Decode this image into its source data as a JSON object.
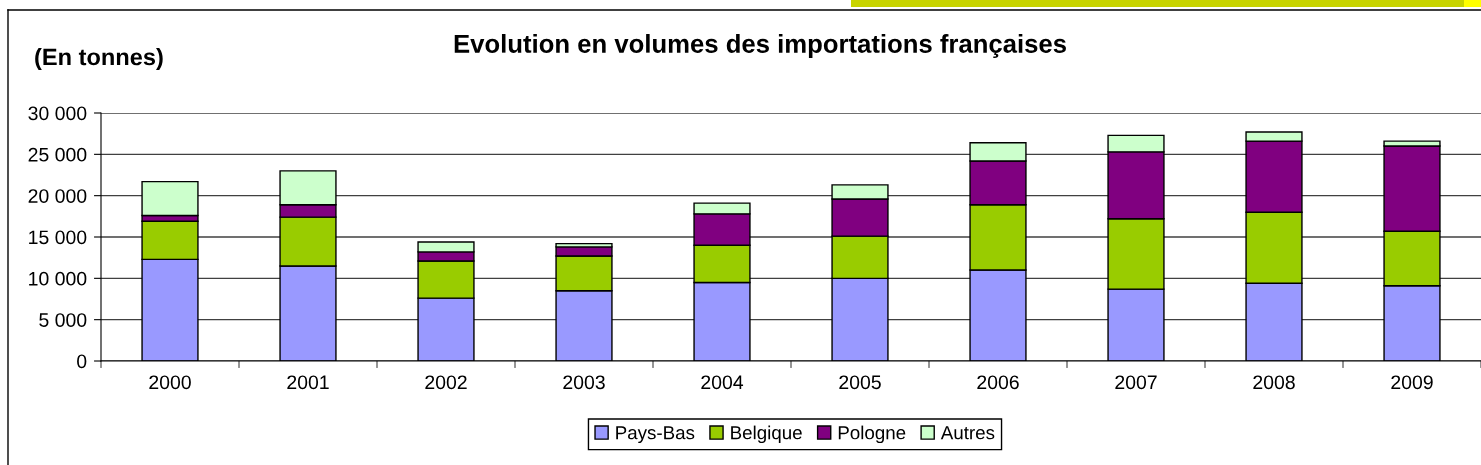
{
  "chart_data": {
    "type": "bar",
    "title": "Evolution en volumes des importations françaises",
    "ylabel": "(En tonnes)",
    "categories": [
      "2000",
      "2001",
      "2002",
      "2003",
      "2004",
      "2005",
      "2006",
      "2007",
      "2008",
      "2009"
    ],
    "stacked": true,
    "series": [
      {
        "name": "Pays-Bas",
        "color": "#9999ff",
        "values": [
          12300,
          11500,
          7600,
          8500,
          9500,
          10000,
          11000,
          8700,
          9400,
          9100
        ]
      },
      {
        "name": "Belgique",
        "color": "#99cc00",
        "values": [
          4600,
          5900,
          4500,
          4200,
          4500,
          5100,
          7900,
          8500,
          8600,
          6600
        ]
      },
      {
        "name": "Pologne",
        "color": "#800080",
        "values": [
          700,
          1500,
          1100,
          1100,
          3800,
          4500,
          5300,
          8100,
          8600,
          10300
        ]
      },
      {
        "name": "Autres",
        "color": "#ccffcc",
        "values": [
          4100,
          4100,
          1200,
          400,
          1300,
          1700,
          2200,
          2000,
          1100,
          600
        ]
      }
    ],
    "ylim": [
      0,
      30000
    ],
    "yticks": [
      0,
      {
        "value": 5000,
        "label": "5 000"
      },
      {
        "value": 10000,
        "label": "10 000"
      },
      {
        "value": 15000,
        "label": "15 000"
      },
      {
        "value": 20000,
        "label": "20 000"
      },
      {
        "value": 25000,
        "label": "25 000"
      },
      {
        "value": 30000,
        "label": "30 000"
      }
    ],
    "grid": "y",
    "legend": "bottom"
  }
}
